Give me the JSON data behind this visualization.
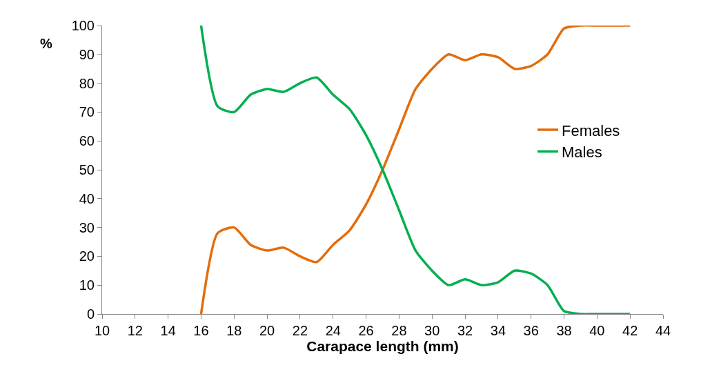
{
  "chart_data": {
    "type": "line",
    "xlabel": "Carapace length (mm)",
    "ylabel": "%",
    "x": [
      16,
      17,
      18,
      19,
      20,
      21,
      22,
      23,
      24,
      25,
      26,
      27,
      28,
      29,
      30,
      31,
      32,
      33,
      34,
      35,
      36,
      37,
      38,
      39,
      40,
      41,
      42
    ],
    "series": [
      {
        "name": "Females",
        "color": "#e46c0a",
        "values": [
          0,
          28,
          30,
          24,
          22,
          23,
          20,
          18,
          24,
          29,
          38,
          50,
          64,
          78,
          85,
          90,
          88,
          90,
          89,
          85,
          86,
          90,
          99,
          100,
          100,
          100,
          100
        ]
      },
      {
        "name": "Males",
        "color": "#00b050",
        "values": [
          100,
          72,
          70,
          76,
          78,
          77,
          80,
          82,
          76,
          71,
          62,
          50,
          36,
          22,
          15,
          10,
          12,
          10,
          11,
          15,
          14,
          10,
          1,
          0,
          0,
          0,
          0
        ]
      }
    ],
    "xlim": [
      10,
      44
    ],
    "xticks": [
      10,
      12,
      14,
      16,
      18,
      20,
      22,
      24,
      26,
      28,
      30,
      32,
      34,
      36,
      38,
      40,
      42,
      44
    ],
    "ylim": [
      0,
      100
    ],
    "yticks": [
      0,
      10,
      20,
      30,
      40,
      50,
      60,
      70,
      80,
      90,
      100
    ],
    "legend": "right",
    "marker": "none",
    "line_style": "solid"
  }
}
